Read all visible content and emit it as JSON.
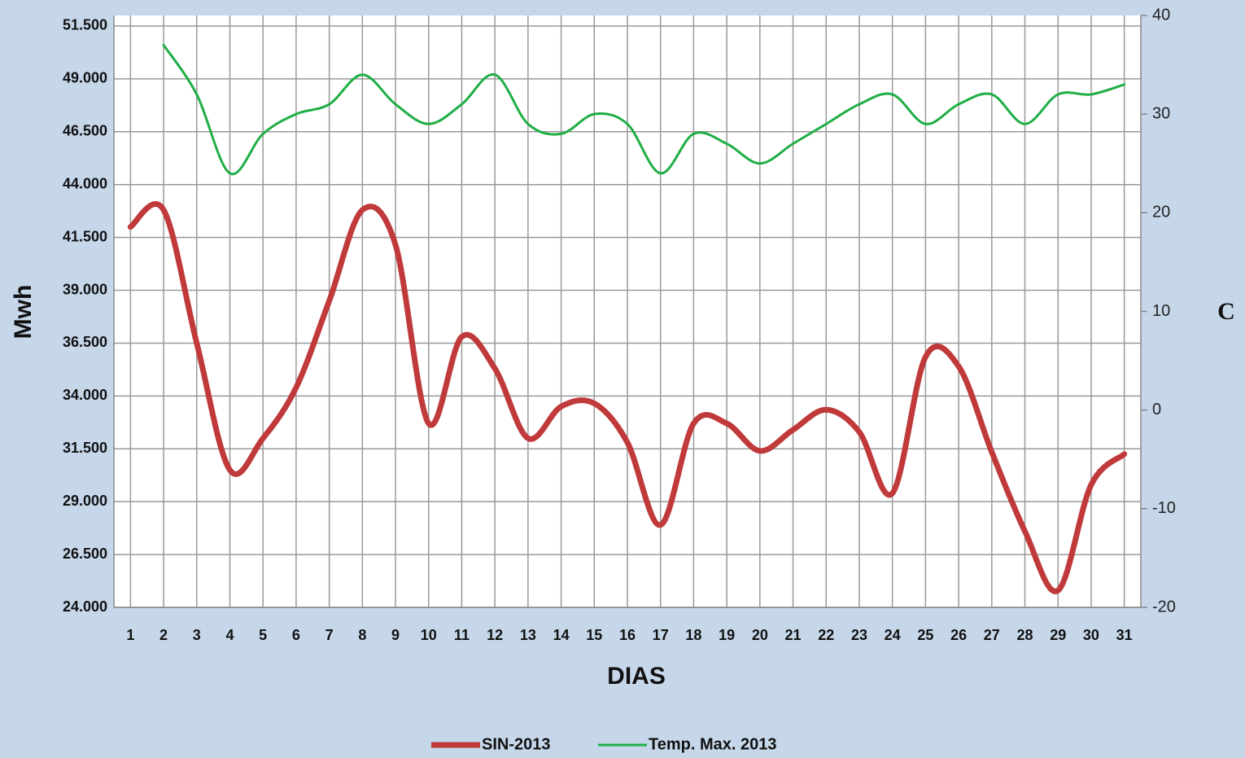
{
  "chart_data": {
    "type": "line",
    "x_label": "DIAS",
    "y_label": "Mwh",
    "y2_label": "C",
    "categories": [
      "1",
      "2",
      "3",
      "4",
      "5",
      "6",
      "7",
      "8",
      "9",
      "10",
      "11",
      "12",
      "13",
      "14",
      "15",
      "16",
      "17",
      "18",
      "19",
      "20",
      "21",
      "22",
      "23",
      "24",
      "25",
      "26",
      "27",
      "28",
      "29",
      "30",
      "31"
    ],
    "series": [
      {
        "name": "SIN-2013",
        "color": "#c0393b",
        "values": [
          42000,
          42800,
          36500,
          30500,
          32000,
          34400,
          38500,
          42800,
          41150,
          32700,
          36800,
          35300,
          32000,
          33500,
          33650,
          31800,
          27900,
          32700,
          32700,
          31400,
          32400,
          33350,
          32300,
          29400,
          35850,
          35400,
          31350,
          27600,
          24800,
          29800,
          31250
        ]
      },
      {
        "name": "Temp. Max. 2013",
        "color": "#1fae45",
        "axis": "y2",
        "values": [
          null,
          37,
          32,
          24,
          28,
          30,
          31,
          34,
          31,
          29,
          31,
          34,
          29,
          28,
          30,
          29,
          24,
          28,
          27,
          25,
          27,
          29,
          31,
          32,
          29,
          31,
          32,
          29,
          32,
          32,
          33
        ]
      }
    ],
    "ylim": [
      24000,
      52000
    ],
    "yticks": [
      {
        "value": 24000,
        "label": "24.000"
      },
      {
        "value": 26500,
        "label": "26.500"
      },
      {
        "value": 29000,
        "label": "29.000"
      },
      {
        "value": 31500,
        "label": "31.500"
      },
      {
        "value": 34000,
        "label": "34.000"
      },
      {
        "value": 36500,
        "label": "36.500"
      },
      {
        "value": 39000,
        "label": "39.000"
      },
      {
        "value": 41500,
        "label": "41.500"
      },
      {
        "value": 44000,
        "label": "44.000"
      },
      {
        "value": 46500,
        "label": "46.500"
      },
      {
        "value": 49000,
        "label": "49.000"
      },
      {
        "value": 51500,
        "label": "51.500"
      }
    ],
    "y2lim": [
      -20,
      40
    ],
    "y2ticks": [
      -20,
      -10,
      0,
      10,
      20,
      30,
      40
    ],
    "grid": true,
    "legend": "bottom"
  }
}
